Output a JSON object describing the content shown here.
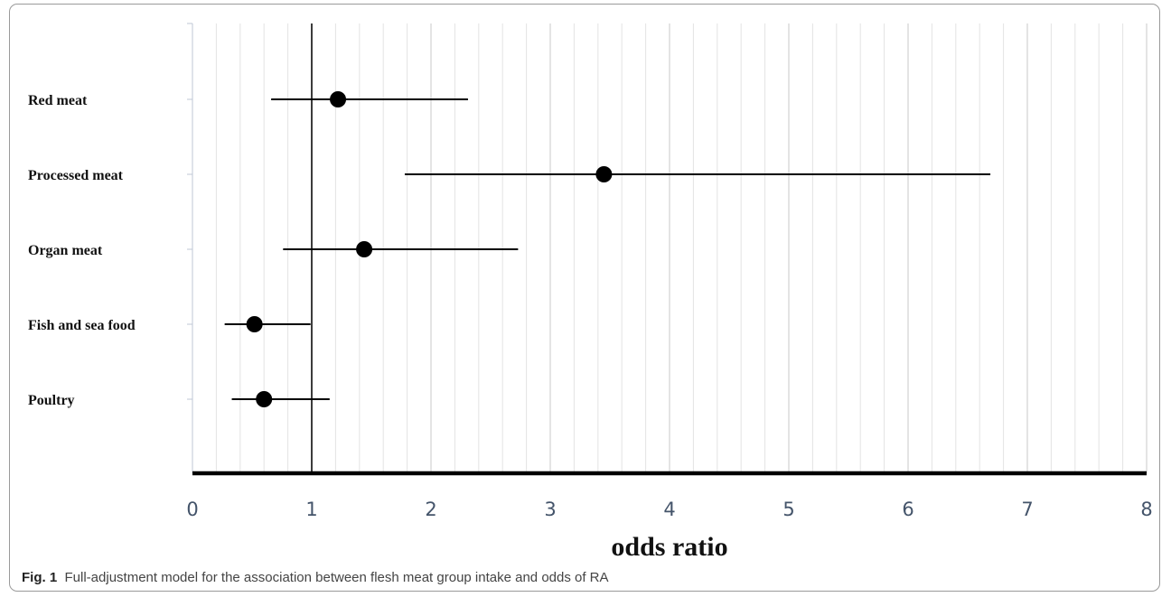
{
  "chart_data": {
    "type": "scatter",
    "subtype": "forest-plot",
    "categories": [
      "Red meat",
      "Processed meat",
      "Organ meat",
      "Fish and sea food",
      "Poultry"
    ],
    "estimates": [
      1.22,
      3.45,
      1.44,
      0.52,
      0.6
    ],
    "ci_lower": [
      0.66,
      1.78,
      0.76,
      0.27,
      0.33
    ],
    "ci_upper": [
      2.31,
      6.69,
      2.73,
      0.99,
      1.15
    ],
    "xlim": [
      0,
      8
    ],
    "x_ticks": [
      "0",
      "1",
      "2",
      "3",
      "4",
      "5",
      "6",
      "7",
      "8"
    ],
    "reference_line": 1,
    "xlabel": "odds ratio",
    "grid": true,
    "colors": {
      "marker": "#000000",
      "grid": "#e3e3e3",
      "tick_text": "#44546a"
    }
  },
  "caption": {
    "label": "Fig. 1",
    "text": "Full-adjustment model for the association between flesh meat group intake and odds of RA"
  }
}
